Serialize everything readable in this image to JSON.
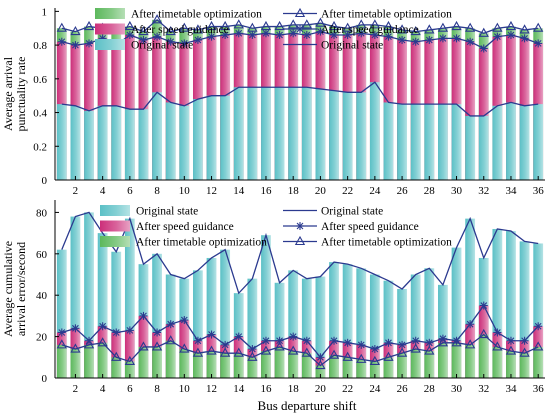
{
  "xlabel": "Bus departure shift",
  "chart_data": [
    {
      "type": "bar",
      "ylabel": "Average arrival punctuality rate",
      "ylim": [
        0,
        1.02
      ],
      "yticks": [
        0,
        0.2,
        0.4,
        0.6,
        0.8,
        1
      ],
      "x": [
        1,
        2,
        3,
        4,
        5,
        6,
        7,
        8,
        9,
        10,
        11,
        12,
        13,
        14,
        15,
        16,
        17,
        18,
        19,
        20,
        21,
        22,
        23,
        24,
        25,
        26,
        27,
        28,
        29,
        30,
        31,
        32,
        33,
        34,
        35,
        36
      ],
      "xticks": [
        2,
        4,
        6,
        8,
        10,
        12,
        14,
        16,
        18,
        20,
        22,
        24,
        26,
        28,
        30,
        32,
        34,
        36
      ],
      "legend": [
        "After timetable optimization",
        "After timetable optimization",
        "After speed guidance",
        "After speed guidance",
        "Original state",
        "Original state"
      ],
      "legend_position": "top",
      "series": [
        {
          "name": "After timetable optimization",
          "color": "#5cb85c",
          "values": [
            0.9,
            0.88,
            0.91,
            0.9,
            0.89,
            0.91,
            0.88,
            0.95,
            0.88,
            0.9,
            0.89,
            0.91,
            0.91,
            0.92,
            0.9,
            0.91,
            0.91,
            0.92,
            0.92,
            0.93,
            0.91,
            0.9,
            0.92,
            0.92,
            0.91,
            0.89,
            0.88,
            0.89,
            0.9,
            0.91,
            0.9,
            0.87,
            0.9,
            0.91,
            0.89,
            0.9
          ]
        },
        {
          "name": "After speed guidance",
          "color": "#cc2f7a",
          "values": [
            0.82,
            0.8,
            0.81,
            0.84,
            0.8,
            0.86,
            0.83,
            0.85,
            0.82,
            0.81,
            0.83,
            0.85,
            0.86,
            0.87,
            0.86,
            0.87,
            0.86,
            0.87,
            0.86,
            0.88,
            0.86,
            0.86,
            0.87,
            0.86,
            0.85,
            0.83,
            0.82,
            0.83,
            0.84,
            0.84,
            0.82,
            0.78,
            0.85,
            0.86,
            0.84,
            0.81
          ]
        },
        {
          "name": "Original state",
          "color": "#5bc0c6",
          "values": [
            0.45,
            0.44,
            0.41,
            0.44,
            0.44,
            0.42,
            0.42,
            0.52,
            0.46,
            0.44,
            0.48,
            0.5,
            0.5,
            0.55,
            0.55,
            0.55,
            0.55,
            0.55,
            0.55,
            0.54,
            0.53,
            0.52,
            0.52,
            0.58,
            0.46,
            0.45,
            0.45,
            0.45,
            0.45,
            0.45,
            0.38,
            0.38,
            0.44,
            0.46,
            0.44,
            0.45
          ]
        }
      ]
    },
    {
      "type": "bar",
      "ylabel": "Average cumulative arrival error/second",
      "ylim": [
        0,
        86
      ],
      "yticks": [
        0,
        20,
        40,
        60,
        80
      ],
      "x": [
        1,
        2,
        3,
        4,
        5,
        6,
        7,
        8,
        9,
        10,
        11,
        12,
        13,
        14,
        15,
        16,
        17,
        18,
        19,
        20,
        21,
        22,
        23,
        24,
        25,
        26,
        27,
        28,
        29,
        30,
        31,
        32,
        33,
        34,
        35,
        36
      ],
      "xticks": [
        2,
        4,
        6,
        8,
        10,
        12,
        14,
        16,
        18,
        20,
        22,
        24,
        26,
        28,
        30,
        32,
        34,
        36
      ],
      "legend": [
        "Original state",
        "Original state",
        "After speed guidance",
        "After speed guidance",
        "After timetable optimization",
        "After timetable optimization"
      ],
      "legend_position": "top",
      "series": [
        {
          "name": "Original state",
          "color": "#5bc0c6",
          "values": [
            62,
            78,
            80,
            70,
            61,
            77,
            55,
            60,
            50,
            48,
            52,
            58,
            62,
            41,
            48,
            69,
            46,
            52,
            48,
            49,
            56,
            55,
            53,
            50,
            47,
            43,
            50,
            53,
            45,
            63,
            77,
            58,
            72,
            71,
            66,
            65
          ]
        },
        {
          "name": "After speed guidance",
          "color": "#cc2f7a",
          "values": [
            22,
            24,
            18,
            25,
            22,
            23,
            30,
            22,
            26,
            28,
            18,
            21,
            16,
            20,
            14,
            18,
            18,
            20,
            18,
            10,
            18,
            17,
            16,
            14,
            17,
            16,
            18,
            17,
            19,
            18,
            26,
            35,
            22,
            18,
            18,
            25
          ]
        },
        {
          "name": "After timetable optimization",
          "color": "#5cb85c",
          "values": [
            16,
            14,
            16,
            17,
            10,
            8,
            15,
            15,
            18,
            14,
            12,
            13,
            12,
            12,
            10,
            13,
            15,
            13,
            12,
            6,
            11,
            10,
            9,
            8,
            10,
            12,
            14,
            13,
            17,
            17,
            16,
            21,
            15,
            13,
            12,
            15
          ]
        }
      ]
    }
  ]
}
